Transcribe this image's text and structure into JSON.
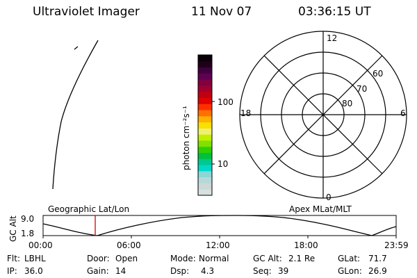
{
  "header": {
    "instrument": "Ultraviolet Imager",
    "date": "11 Nov 07",
    "time": "03:36:15 UT"
  },
  "colorbar": {
    "label": "photon cm⁻²s⁻¹",
    "ticks": [
      "100",
      "10"
    ],
    "colors": [
      "#d8e0e0",
      "#ccd8d8",
      "#b8d8d8",
      "#88d8d8",
      "#00d8c8",
      "#00c890",
      "#00c040",
      "#30d000",
      "#80e000",
      "#c0f000",
      "#f0f070",
      "#f8e000",
      "#ffb000",
      "#ff7000",
      "#ff3000",
      "#e00000",
      "#c00010",
      "#a00030",
      "#800040",
      "#600050",
      "#400040",
      "#200018",
      "#0a0008"
    ]
  },
  "polar_grid": {
    "mlt_labels": {
      "top": "12",
      "left": "18",
      "right": "6",
      "bottom": "0"
    },
    "lat_labels": [
      "60",
      "70",
      "80"
    ]
  },
  "altitude_plot": {
    "y_axis_label": "GC Alt",
    "y_ticks": [
      "9.0",
      "1.8"
    ],
    "left_caption": "Geographic Lat/Lon",
    "right_caption": "Apex MLat/MLT",
    "x_ticks": [
      "00:00",
      "06:00",
      "12:00",
      "18:00",
      "23:59"
    ],
    "marker_color": "#cc0000"
  },
  "status": {
    "row1": [
      {
        "key": "Flt:",
        "value": "LBHL"
      },
      {
        "key": "Door:",
        "value": "Open"
      },
      {
        "key": "Mode:",
        "value": "Normal"
      },
      {
        "key": "GC Alt:",
        "value": "2.1 Re"
      },
      {
        "key": "GLat:",
        "value": "71.7"
      }
    ],
    "row2": [
      {
        "key": "IP:",
        "value": "36.0"
      },
      {
        "key": "Gain:",
        "value": "14"
      },
      {
        "key": "Dsp:",
        "value": "4.3"
      },
      {
        "key": "Seq:",
        "value": "39"
      },
      {
        "key": "GLon:",
        "value": "26.9"
      }
    ]
  }
}
